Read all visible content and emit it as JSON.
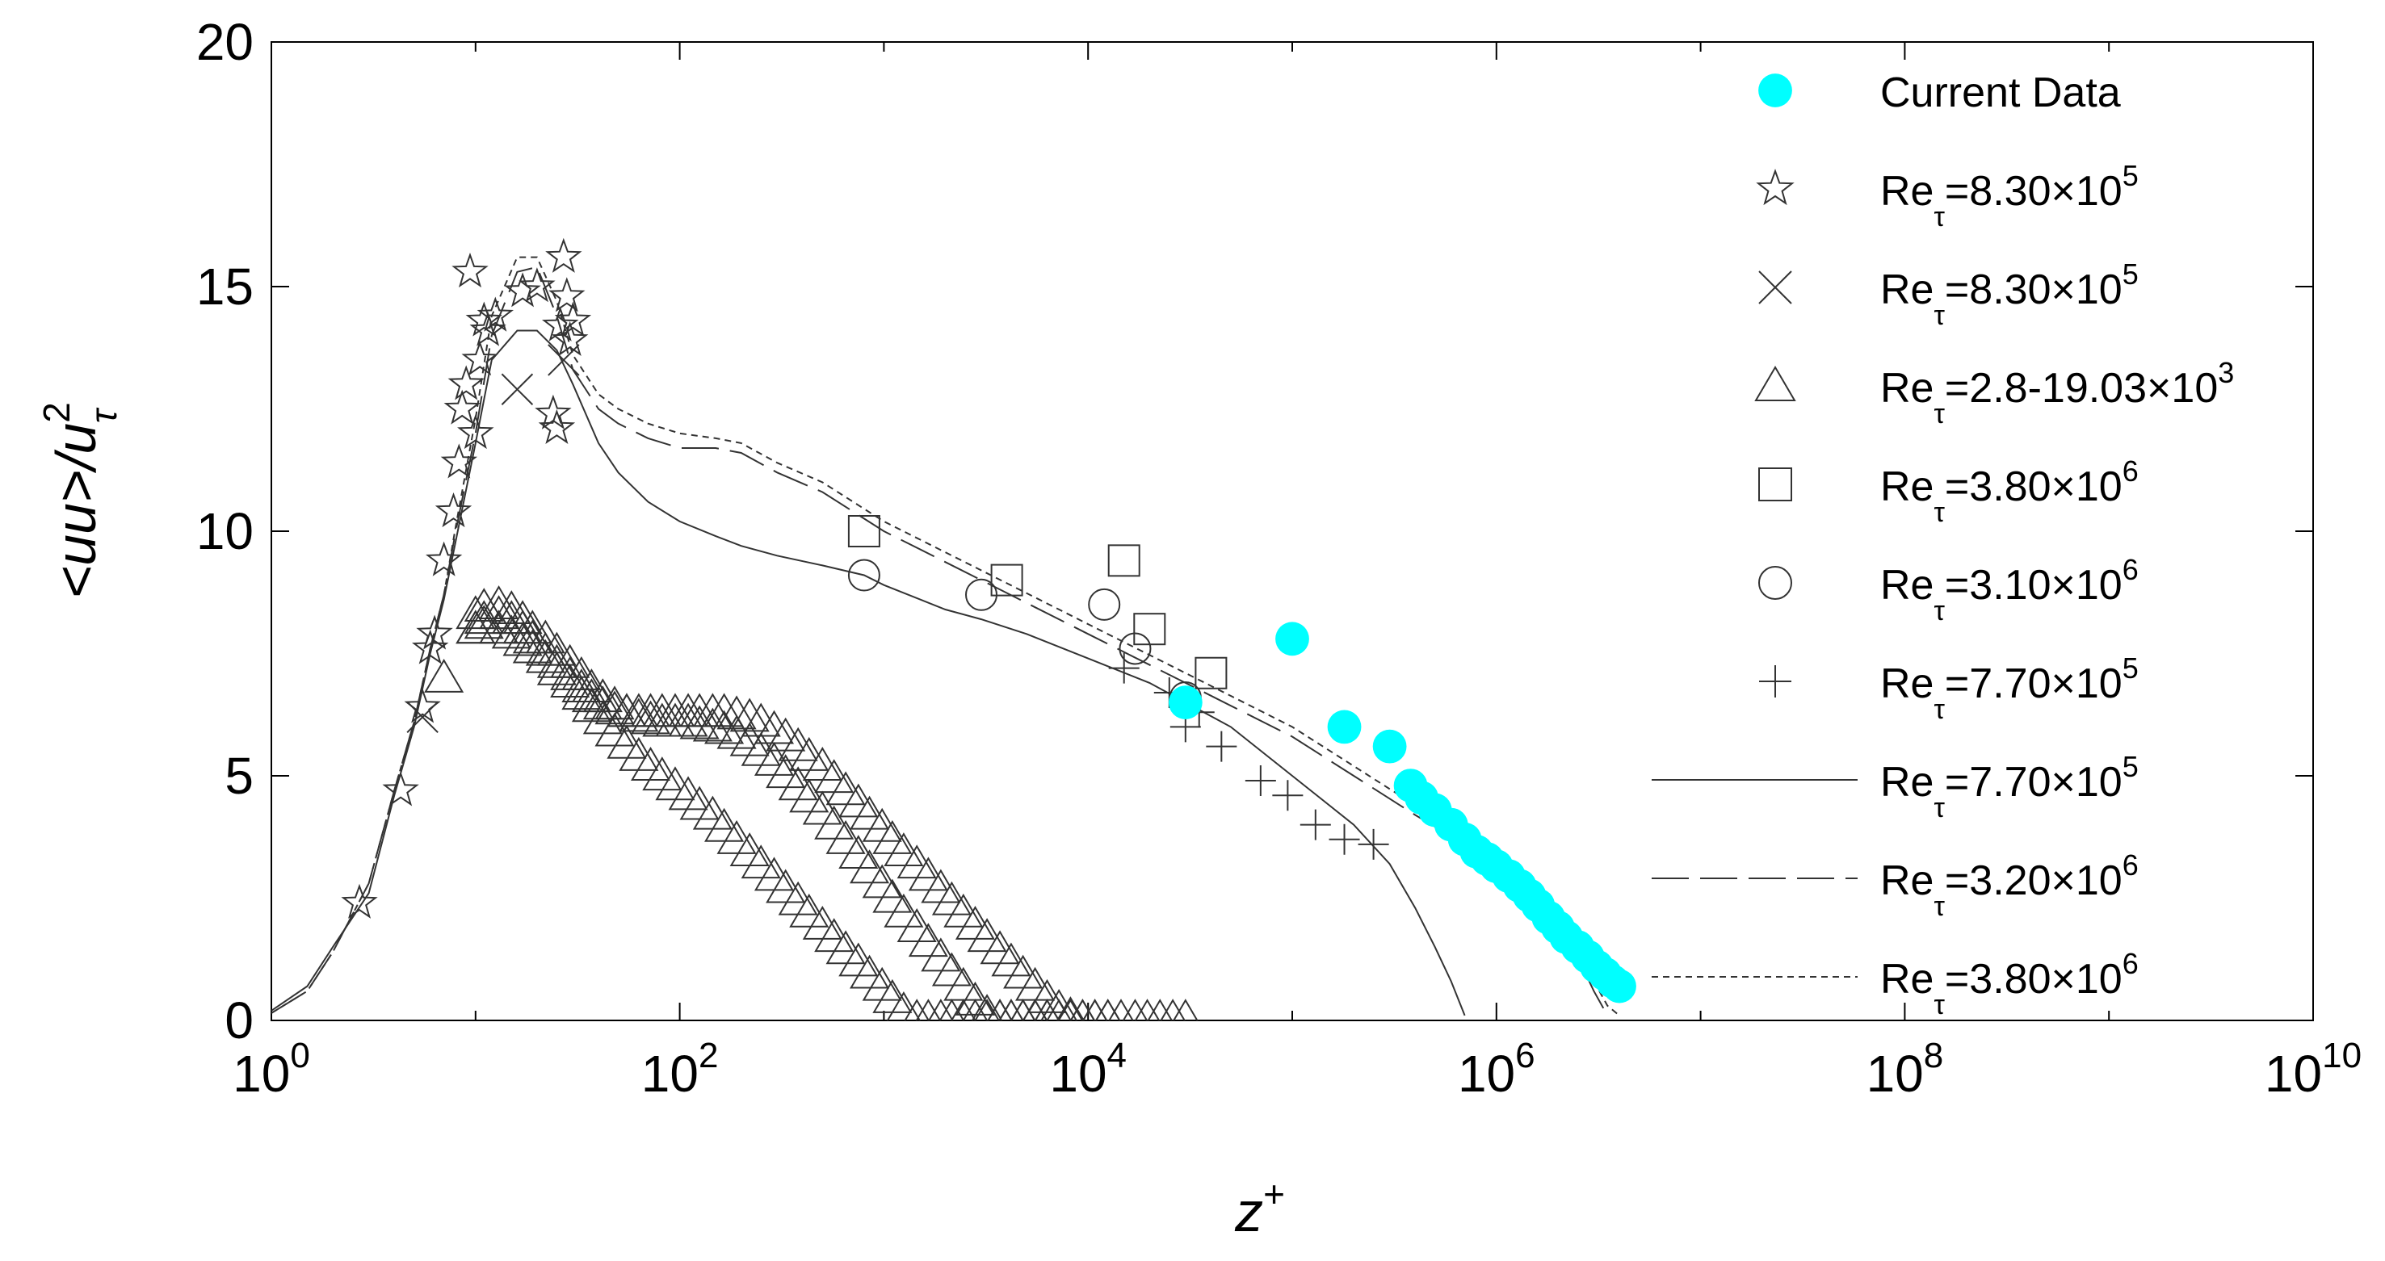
{
  "chart_data": {
    "type": "scatter",
    "title": "",
    "xaxis": {
      "scale": "log",
      "range": [
        1,
        10000000000
      ],
      "ticks": [
        {
          "value": 1,
          "base": "10",
          "exp": "0"
        },
        {
          "value": 100,
          "base": "10",
          "exp": "2"
        },
        {
          "value": 10000,
          "base": "10",
          "exp": "4"
        },
        {
          "value": 1000000,
          "base": "10",
          "exp": "6"
        },
        {
          "value": 100000000,
          "base": "10",
          "exp": "8"
        },
        {
          "value": 10000000000,
          "base": "10",
          "exp": "10"
        }
      ],
      "label": {
        "main": "z",
        "sup": "+"
      }
    },
    "yaxis": {
      "scale": "linear",
      "range": [
        0,
        20
      ],
      "ticks": [
        "0",
        "5",
        "10",
        "15",
        "20"
      ],
      "label": {
        "main": "<uu>/u",
        "sup": "2",
        "sub": "τ"
      }
    },
    "grid": false,
    "legend_position": "top-right",
    "accent_color": "#00ffff",
    "series": [
      {
        "name": {
          "main": "Current Data"
        },
        "marker": "filled-circle",
        "color": "#00ffff",
        "x": [
          30000,
          100000,
          180000,
          300000,
          380000,
          430000,
          500000,
          600000,
          700000,
          800000,
          900000,
          1000000,
          1150000,
          1300000,
          1450000,
          1600000,
          1800000,
          2000000,
          2200000,
          2500000,
          2800000,
          3100000,
          3400000,
          3700000,
          4000000
        ],
        "y": [
          6.5,
          7.8,
          6.0,
          5.6,
          4.8,
          4.55,
          4.3,
          4.0,
          3.7,
          3.45,
          3.3,
          3.15,
          2.95,
          2.75,
          2.55,
          2.35,
          2.1,
          1.9,
          1.7,
          1.5,
          1.3,
          1.1,
          0.95,
          0.8,
          0.7
        ]
      },
      {
        "name": {
          "main": "Re",
          "sub": "τ",
          "rest": "=8.30",
          "times": "×",
          "base": "10",
          "exp": "5"
        },
        "marker": "star",
        "x": [
          2.7,
          4.3,
          5.5,
          6.0,
          6.3,
          7.0,
          7.8,
          8.3,
          8.6,
          9.0,
          9.4,
          10.0,
          10.5,
          11.0,
          11.5,
          12.5,
          17,
          20,
          24,
          25,
          26,
          27,
          28,
          29,
          30
        ],
        "y": [
          2.4,
          4.7,
          6.4,
          7.6,
          7.9,
          9.4,
          10.4,
          11.4,
          12.5,
          13.0,
          15.3,
          12.0,
          13.5,
          14.3,
          14.1,
          14.4,
          14.9,
          15.0,
          12.4,
          12.1,
          14.2,
          15.6,
          14.8,
          13.9,
          14.3
        ]
      },
      {
        "name": {
          "main": "Re",
          "sub": "τ",
          "rest": "=8.30",
          "times": "×",
          "base": "10",
          "exp": "5"
        },
        "marker": "cross",
        "x": [
          5.5,
          16,
          27
        ],
        "y": [
          6.2,
          12.9,
          13.5
        ]
      },
      {
        "name": {
          "main": "Re",
          "sub": "τ",
          "rest": "=2.8-19.03",
          "times": "×",
          "base": "10",
          "exp": "3"
        },
        "marker": "triangle",
        "x": [
          7,
          10,
          11,
          13,
          15,
          17,
          19,
          22,
          25,
          29,
          33,
          37,
          42,
          48,
          55,
          63,
          72,
          82,
          95,
          110,
          125,
          145,
          165,
          190,
          220,
          250,
          290,
          330,
          380,
          430,
          500,
          570,
          650,
          750,
          850,
          980,
          1100,
          1250,
          1450,
          1650,
          1900,
          2150,
          2450,
          2800,
          3200,
          3700,
          4200,
          4800,
          5500,
          6300,
          10,
          11,
          13,
          15,
          17,
          19,
          22,
          25,
          29,
          33,
          37,
          42,
          48,
          55,
          63,
          72,
          82,
          95,
          110,
          125,
          145,
          165,
          190,
          220,
          250,
          290,
          330,
          380,
          430,
          500,
          570,
          650,
          750,
          850,
          980,
          1100,
          1250,
          1450,
          1650,
          1900,
          2150,
          2450,
          2800,
          3200,
          3700,
          4200,
          4800,
          5500,
          6300,
          7200,
          8200,
          9400,
          10800,
          12500,
          10,
          11,
          13,
          15,
          17,
          19,
          22,
          25,
          29,
          33,
          37,
          42,
          48,
          55,
          63,
          72,
          82,
          95,
          110,
          125,
          145,
          165,
          190,
          220,
          250,
          290,
          330,
          380,
          430,
          500,
          570,
          650,
          750,
          850,
          980,
          1100,
          1250,
          1450,
          1650,
          1900,
          2150,
          2450,
          2800,
          3200,
          3700,
          4200,
          4800,
          5500,
          6300,
          7200,
          8200,
          9400,
          10800,
          12500,
          14500,
          17000,
          19500,
          22500,
          26000,
          30000
        ],
        "y": [
          7.0,
          8.0,
          8.1,
          8.0,
          7.9,
          7.75,
          7.6,
          7.4,
          7.15,
          6.9,
          6.65,
          6.4,
          6.15,
          5.9,
          5.65,
          5.4,
          5.2,
          5.0,
          4.8,
          4.6,
          4.4,
          4.2,
          3.95,
          3.7,
          3.45,
          3.2,
          2.95,
          2.7,
          2.45,
          2.2,
          1.95,
          1.7,
          1.45,
          1.2,
          0.95,
          0.7,
          0.45,
          0.2,
          0.05,
          0.05,
          0.05,
          0.05,
          0.05,
          0.05,
          0.05,
          0.05,
          0.05,
          0.05,
          0.05,
          0.05,
          8.3,
          8.45,
          8.5,
          8.4,
          8.2,
          8.0,
          7.8,
          7.55,
          7.3,
          7.05,
          6.8,
          6.6,
          6.45,
          6.3,
          6.2,
          6.15,
          6.1,
          6.1,
          6.1,
          6.05,
          6.0,
          5.95,
          5.85,
          5.7,
          5.5,
          5.3,
          5.05,
          4.8,
          4.55,
          4.3,
          4.0,
          3.7,
          3.4,
          3.1,
          2.8,
          2.5,
          2.2,
          1.9,
          1.6,
          1.3,
          1.0,
          0.7,
          0.4,
          0.15,
          0.05,
          0.05,
          0.05,
          0.05,
          0.05,
          0.05,
          0.05,
          0.05,
          0.05,
          0.05,
          8.0,
          8.2,
          8.3,
          8.2,
          8.0,
          7.8,
          7.55,
          7.3,
          7.05,
          6.8,
          6.6,
          6.45,
          6.35,
          6.3,
          6.3,
          6.3,
          6.3,
          6.3,
          6.3,
          6.3,
          6.3,
          6.3,
          6.25,
          6.2,
          6.1,
          5.95,
          5.8,
          5.6,
          5.4,
          5.2,
          4.95,
          4.7,
          4.45,
          4.2,
          3.95,
          3.7,
          3.45,
          3.2,
          2.95,
          2.7,
          2.45,
          2.2,
          1.95,
          1.7,
          1.45,
          1.2,
          0.95,
          0.7,
          0.45,
          0.25,
          0.1,
          0.05,
          0.05,
          0.05,
          0.05,
          0.05,
          0.05,
          0.05,
          0.05,
          0.05
        ]
      },
      {
        "name": {
          "main": "Re",
          "sub": "τ",
          "rest": "=3.80",
          "times": "×",
          "base": "10",
          "exp": "6"
        },
        "marker": "square",
        "x": [
          800,
          4000,
          15000,
          20000,
          40000
        ],
        "y": [
          10.0,
          9.0,
          9.4,
          8.0,
          7.1
        ]
      },
      {
        "name": {
          "main": "Re",
          "sub": "τ",
          "rest": "=3.10",
          "times": "×",
          "base": "10",
          "exp": "6"
        },
        "marker": "circle",
        "x": [
          800,
          3000,
          12000,
          17000,
          30000
        ],
        "y": [
          9.1,
          8.7,
          8.5,
          7.6,
          6.6
        ]
      },
      {
        "name": {
          "main": "Re",
          "sub": "τ",
          "rest": "=7.70",
          "times": "×",
          "base": "10",
          "exp": "5"
        },
        "marker": "plus",
        "x": [
          15000,
          25000,
          30000,
          35000,
          45000,
          70000,
          95000,
          130000,
          180000,
          250000
        ],
        "y": [
          7.2,
          6.7,
          6.0,
          6.3,
          5.6,
          4.9,
          4.6,
          4.0,
          3.7,
          3.6
        ]
      },
      {
        "name": {
          "main": "Re",
          "sub": "τ",
          "rest": "=7.70",
          "times": "×",
          "base": "10",
          "exp": "5"
        },
        "line": "solid",
        "x": [
          1,
          1.5,
          2,
          3,
          4,
          5,
          6,
          7,
          8,
          10,
          12,
          16,
          20,
          25,
          30,
          40,
          50,
          70,
          100,
          150,
          200,
          300,
          500,
          800,
          1000,
          2000,
          3000,
          5000,
          10000,
          20000,
          50000,
          100000,
          200000,
          300000,
          400000,
          500000,
          600000,
          700000
        ],
        "y": [
          0.2,
          0.7,
          1.5,
          2.6,
          4.6,
          6.0,
          7.5,
          8.6,
          9.8,
          11.8,
          13.5,
          14.1,
          14.1,
          13.7,
          13.0,
          11.8,
          11.2,
          10.6,
          10.2,
          9.9,
          9.7,
          9.5,
          9.3,
          9.1,
          8.9,
          8.4,
          8.2,
          7.9,
          7.4,
          6.9,
          6.0,
          5.0,
          4.0,
          3.2,
          2.3,
          1.5,
          0.8,
          0.1
        ]
      },
      {
        "name": {
          "main": "Re",
          "sub": "τ",
          "rest": "=3.20",
          "times": "×",
          "base": "10",
          "exp": "6"
        },
        "line": "dashed",
        "x": [
          1,
          1.5,
          2,
          3,
          4,
          5,
          6,
          7,
          8,
          10,
          12,
          16,
          20,
          25,
          30,
          40,
          50,
          70,
          100,
          150,
          200,
          300,
          500,
          1000,
          3000,
          10000,
          30000,
          100000,
          200000,
          400000,
          700000,
          1000000,
          1500000,
          2000000,
          2500000,
          3000000,
          3500000
        ],
        "y": [
          0.15,
          0.6,
          1.4,
          2.8,
          4.7,
          6.1,
          7.6,
          8.7,
          10.0,
          12.0,
          14.0,
          15.3,
          15.4,
          14.4,
          13.3,
          12.5,
          12.2,
          11.9,
          11.7,
          11.7,
          11.6,
          11.2,
          10.8,
          10.0,
          9.0,
          7.9,
          6.9,
          5.8,
          5.0,
          4.2,
          3.6,
          3.1,
          2.6,
          2.0,
          1.3,
          0.6,
          0.1
        ]
      },
      {
        "name": {
          "main": "Re",
          "sub": "τ",
          "rest": "=3.80",
          "times": "×",
          "base": "10",
          "exp": "6"
        },
        "line": "dotted",
        "x": [
          1,
          1.5,
          2,
          3,
          4,
          5,
          6,
          7,
          8,
          10,
          12,
          16,
          20,
          25,
          30,
          40,
          50,
          70,
          100,
          150,
          200,
          300,
          500,
          1000,
          3000,
          10000,
          30000,
          100000,
          200000,
          400000,
          700000,
          1000000,
          1500000,
          2000000,
          2500000,
          3000000,
          3500000,
          4000000
        ],
        "y": [
          0.15,
          0.6,
          1.4,
          2.8,
          4.7,
          6.1,
          7.6,
          8.7,
          10.1,
          12.3,
          14.4,
          15.6,
          15.6,
          14.7,
          13.6,
          12.8,
          12.5,
          12.2,
          12.0,
          11.9,
          11.8,
          11.4,
          11.0,
          10.2,
          9.2,
          8.1,
          7.1,
          6.0,
          5.2,
          4.4,
          3.8,
          3.3,
          2.8,
          2.2,
          1.5,
          0.8,
          0.3,
          0.1
        ]
      }
    ]
  }
}
